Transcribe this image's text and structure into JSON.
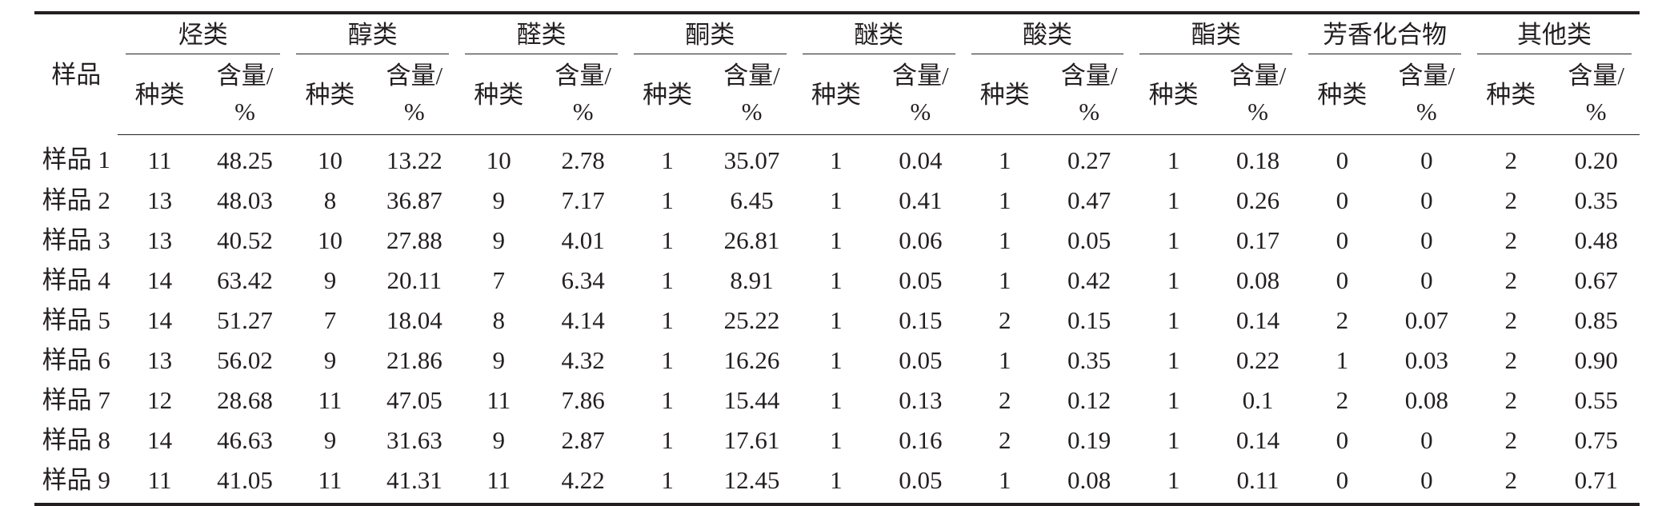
{
  "table": {
    "sample_header": "样品",
    "groups": [
      {
        "label": "烃类",
        "count_label": "种类",
        "content_label": "含量/",
        "unit": "%"
      },
      {
        "label": "醇类",
        "count_label": "种类",
        "content_label": "含量/",
        "unit": "%"
      },
      {
        "label": "醛类",
        "count_label": "种类",
        "content_label": "含量/",
        "unit": "%"
      },
      {
        "label": "酮类",
        "count_label": "种类",
        "content_label": "含量/",
        "unit": "%"
      },
      {
        "label": "醚类",
        "count_label": "种类",
        "content_label": "含量/",
        "unit": "%"
      },
      {
        "label": "酸类",
        "count_label": "种类",
        "content_label": "含量/",
        "unit": "%"
      },
      {
        "label": "酯类",
        "count_label": "种类",
        "content_label": "含量/",
        "unit": "%"
      },
      {
        "label": "芳香化合物",
        "count_label": "种类",
        "content_label": "含量/",
        "unit": "%"
      },
      {
        "label": "其他类",
        "count_label": "种类",
        "content_label": "含量/",
        "unit": "%"
      }
    ],
    "rows": [
      {
        "sample": "样品 1",
        "cells": [
          "11",
          "48.25",
          "10",
          "13.22",
          "10",
          "2.78",
          "1",
          "35.07",
          "1",
          "0.04",
          "1",
          "0.27",
          "1",
          "0.18",
          "0",
          "0",
          "2",
          "0.20"
        ]
      },
      {
        "sample": "样品 2",
        "cells": [
          "13",
          "48.03",
          "8",
          "36.87",
          "9",
          "7.17",
          "1",
          "6.45",
          "1",
          "0.41",
          "1",
          "0.47",
          "1",
          "0.26",
          "0",
          "0",
          "2",
          "0.35"
        ]
      },
      {
        "sample": "样品 3",
        "cells": [
          "13",
          "40.52",
          "10",
          "27.88",
          "9",
          "4.01",
          "1",
          "26.81",
          "1",
          "0.06",
          "1",
          "0.05",
          "1",
          "0.17",
          "0",
          "0",
          "2",
          "0.48"
        ]
      },
      {
        "sample": "样品 4",
        "cells": [
          "14",
          "63.42",
          "9",
          "20.11",
          "7",
          "6.34",
          "1",
          "8.91",
          "1",
          "0.05",
          "1",
          "0.42",
          "1",
          "0.08",
          "0",
          "0",
          "2",
          "0.67"
        ]
      },
      {
        "sample": "样品 5",
        "cells": [
          "14",
          "51.27",
          "7",
          "18.04",
          "8",
          "4.14",
          "1",
          "25.22",
          "1",
          "0.15",
          "2",
          "0.15",
          "1",
          "0.14",
          "2",
          "0.07",
          "2",
          "0.85"
        ]
      },
      {
        "sample": "样品 6",
        "cells": [
          "13",
          "56.02",
          "9",
          "21.86",
          "9",
          "4.32",
          "1",
          "16.26",
          "1",
          "0.05",
          "1",
          "0.35",
          "1",
          "0.22",
          "1",
          "0.03",
          "2",
          "0.90"
        ]
      },
      {
        "sample": "样品 7",
        "cells": [
          "12",
          "28.68",
          "11",
          "47.05",
          "11",
          "7.86",
          "1",
          "15.44",
          "1",
          "0.13",
          "2",
          "0.12",
          "1",
          "0.1",
          "2",
          "0.08",
          "2",
          "0.55"
        ]
      },
      {
        "sample": "样品 8",
        "cells": [
          "14",
          "46.63",
          "9",
          "31.63",
          "9",
          "2.87",
          "1",
          "17.61",
          "1",
          "0.16",
          "2",
          "0.19",
          "1",
          "0.14",
          "0",
          "0",
          "2",
          "0.75"
        ]
      },
      {
        "sample": "样品 9",
        "cells": [
          "11",
          "41.05",
          "11",
          "41.31",
          "11",
          "4.22",
          "1",
          "12.45",
          "1",
          "0.05",
          "1",
          "0.08",
          "1",
          "0.11",
          "0",
          "0",
          "2",
          "0.71"
        ]
      }
    ]
  }
}
